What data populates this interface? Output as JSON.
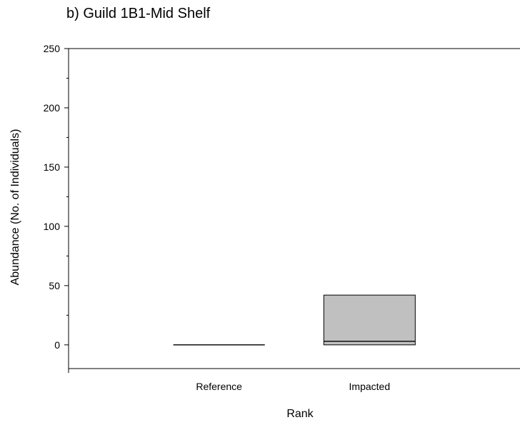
{
  "chart_data": {
    "type": "box",
    "title": "b) Guild 1B1-Mid Shelf",
    "xlabel": "Rank",
    "ylabel": "Abundance (No. of Individuals)",
    "ylim": [
      -20,
      250
    ],
    "yticks": [
      0,
      50,
      100,
      150,
      200,
      250
    ],
    "yminor_step": 25,
    "categories": [
      "Reference",
      "Impacted"
    ],
    "boxes": [
      {
        "category": "Reference",
        "q1": 0,
        "median": 0,
        "q3": 0
      },
      {
        "category": "Impacted",
        "q1": 0,
        "median": 3,
        "q3": 42
      }
    ],
    "box_fill": "#c0c0c0",
    "grid": false
  }
}
